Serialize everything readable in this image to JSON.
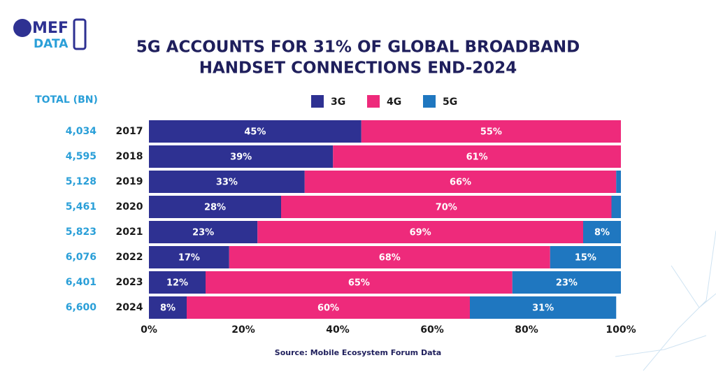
{
  "logo": [
    "MEF",
    "DATA"
  ],
  "chart_data": {
    "type": "stacked_barh",
    "title": [
      "5G ACCOUNTS FOR 31% OF GLOBAL BROADBAND",
      "HANDSET CONNECTIONS END-2024"
    ],
    "categories": [
      "2017",
      "2018",
      "2019",
      "2020",
      "2021",
      "2022",
      "2023",
      "2024"
    ],
    "series": [
      {
        "name": "3G",
        "color": "#2e3192",
        "values": [
          45,
          39,
          33,
          28,
          23,
          17,
          12,
          8
        ],
        "value_labels": [
          "45%",
          "39%",
          "33%",
          "28%",
          "23%",
          "17%",
          "12%",
          "8%"
        ]
      },
      {
        "name": "4G",
        "color": "#ee2a7b",
        "values": [
          55,
          61,
          66,
          70,
          69,
          68,
          65,
          60
        ],
        "value_labels": [
          "55%",
          "61%",
          "66%",
          "70%",
          "69%",
          "68%",
          "65%",
          "60%"
        ]
      },
      {
        "name": "5G",
        "color": "#1f77c0",
        "values": [
          0,
          0,
          1,
          2,
          8,
          15,
          23,
          31
        ],
        "value_labels": [
          null,
          null,
          null,
          null,
          "8%",
          "15%",
          "23%",
          "31%"
        ]
      }
    ],
    "xlim": [
      0,
      100
    ],
    "xticks": [
      {
        "value": 0,
        "label": "0%"
      },
      {
        "value": 20,
        "label": "20%"
      },
      {
        "value": 40,
        "label": "40%"
      },
      {
        "value": 60,
        "label": "60%"
      },
      {
        "value": 80,
        "label": "80%"
      },
      {
        "value": 100,
        "label": "100%"
      }
    ],
    "legend": "top",
    "totals": {
      "title": "TOTAL (BN)",
      "labels": [
        "4,034",
        "4,595",
        "5,128",
        "5,461",
        "5,823",
        "6,076",
        "6,401",
        "6,600"
      ]
    },
    "source": "Source: Mobile Ecosystem Forum Data"
  }
}
